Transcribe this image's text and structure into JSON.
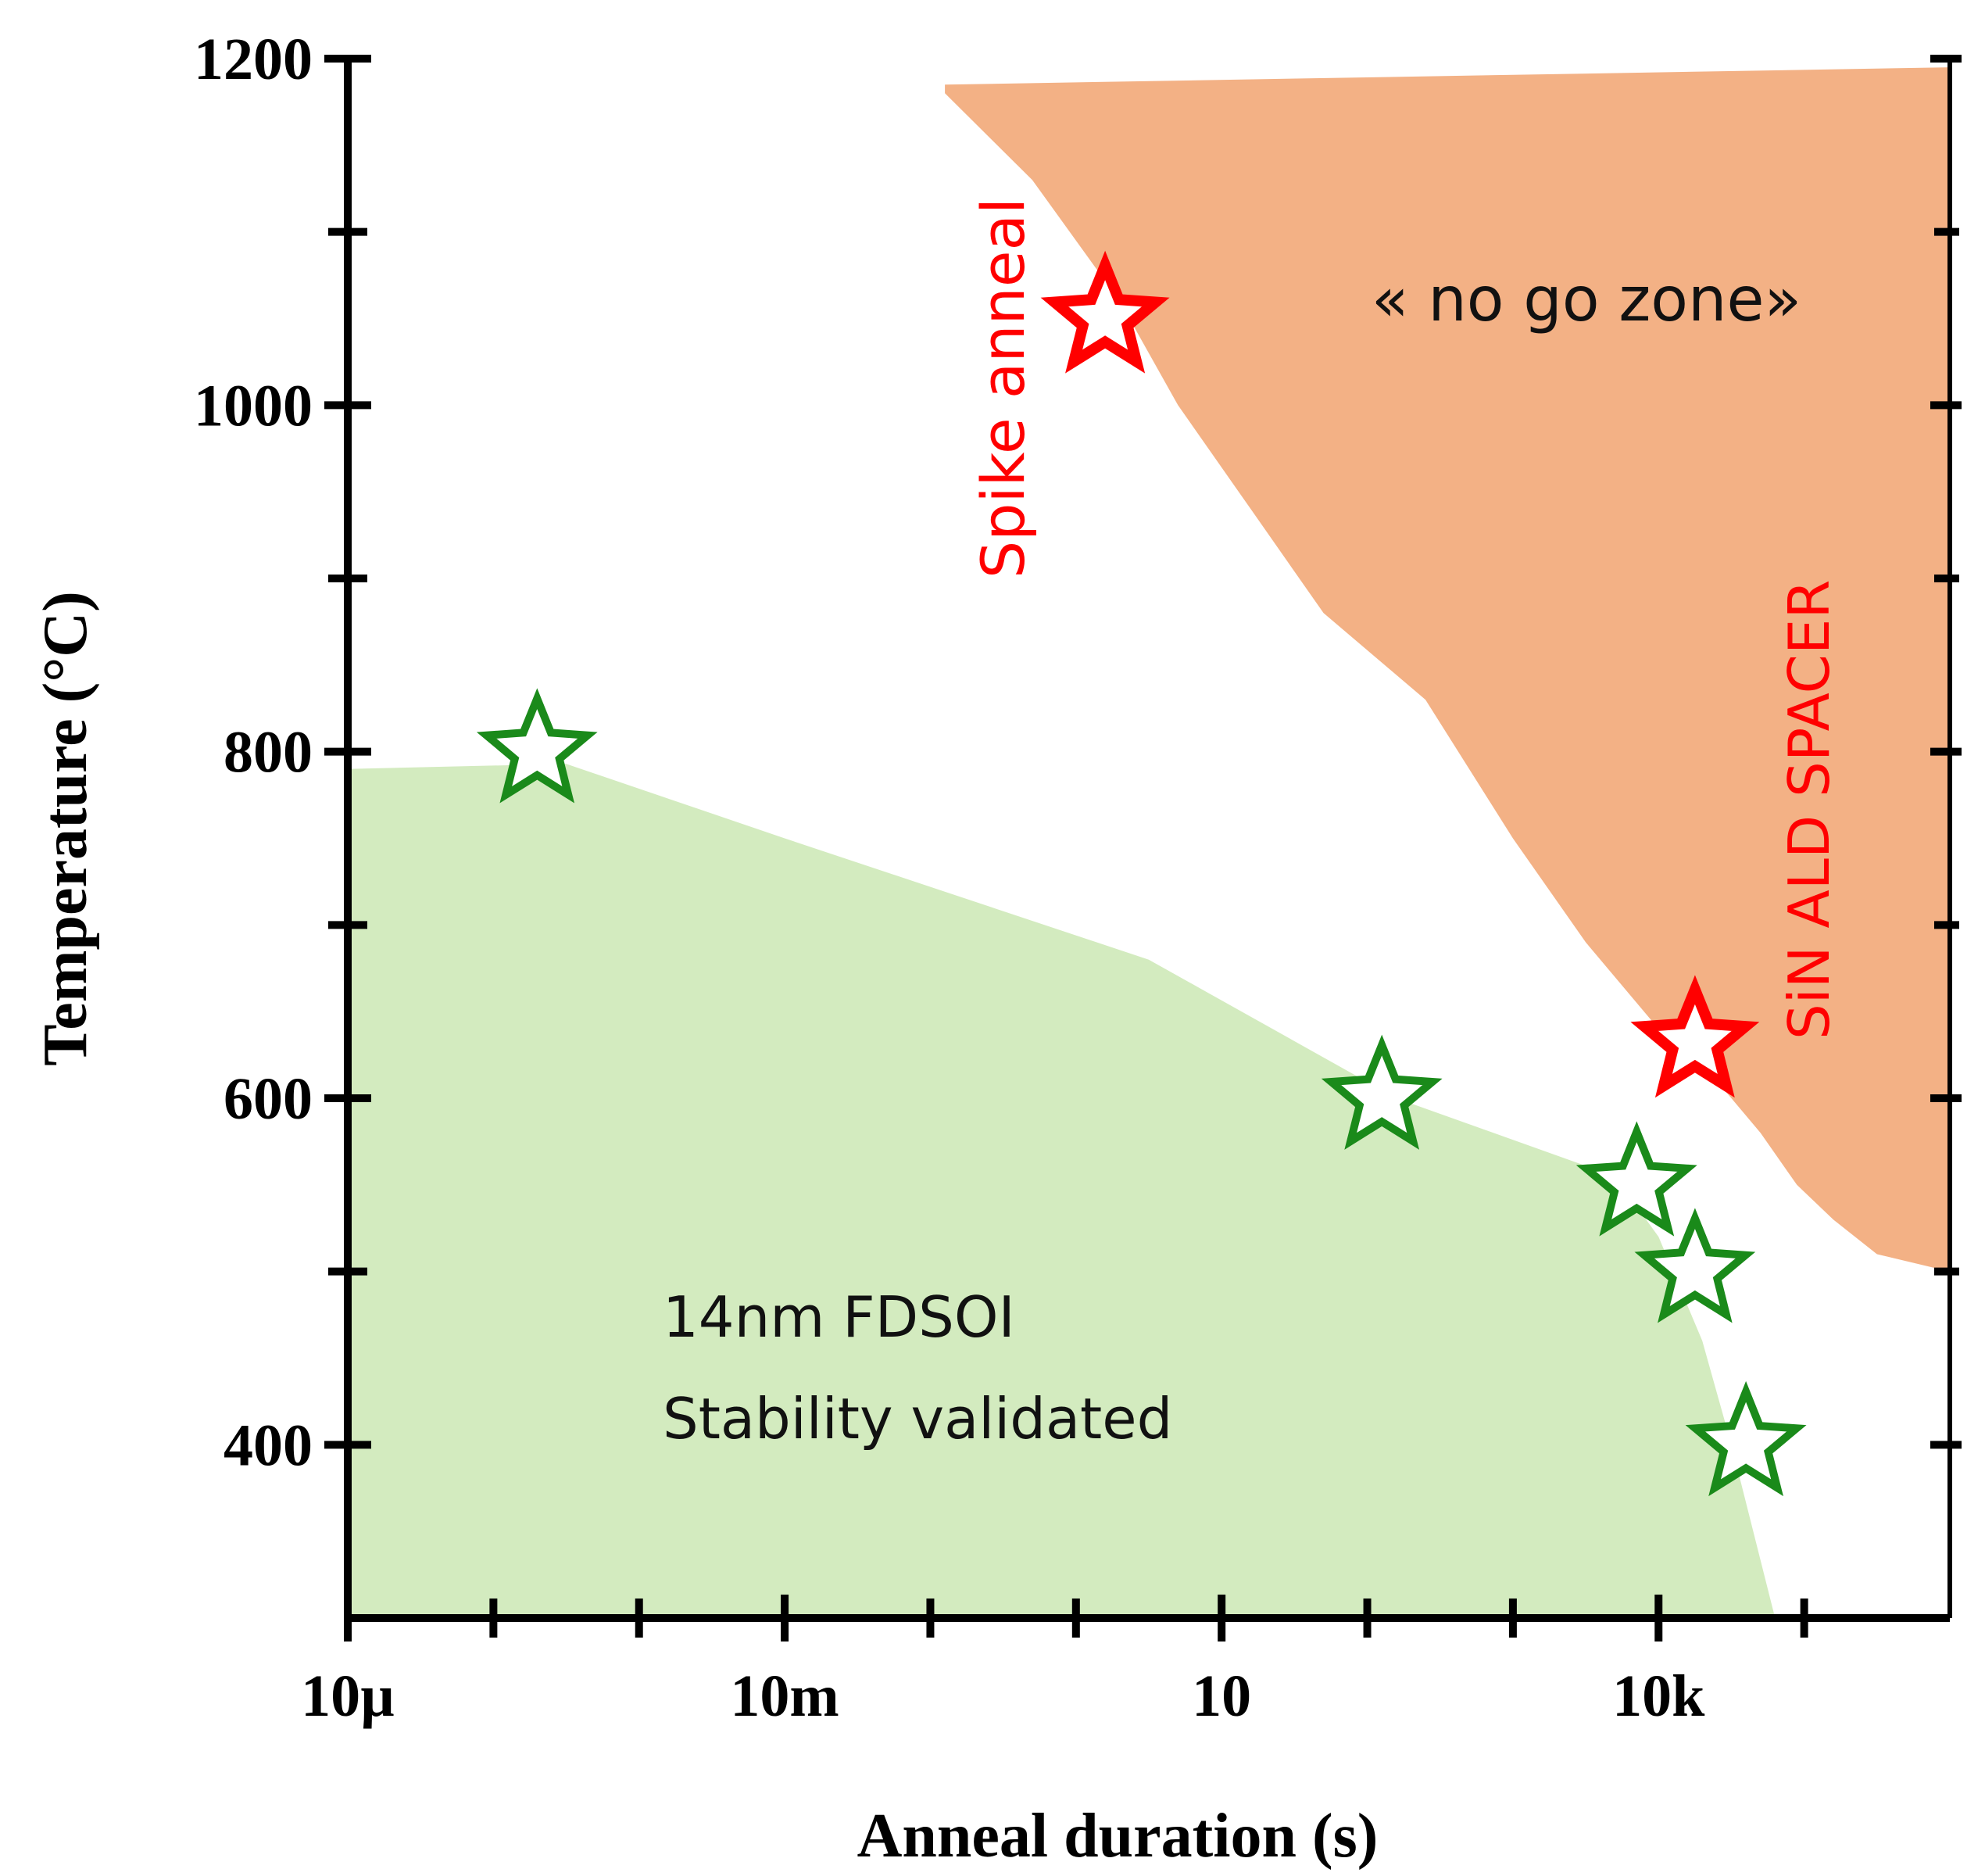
{
  "chart_data": {
    "type": "scatter",
    "title": "",
    "xlabel": "Anneal duration (s)",
    "ylabel": "Temperature (°C)",
    "x_scale": "log10",
    "xlim_log10": [
      -5,
      6
    ],
    "ylim": [
      300,
      1200
    ],
    "x_tick_labels": [
      {
        "log10": -5,
        "label": "10µ"
      },
      {
        "log10": -2,
        "label": "10m"
      },
      {
        "log10": 1,
        "label": "10"
      },
      {
        "log10": 4,
        "label": "10k"
      }
    ],
    "y_tick_labels": [
      {
        "value": 400,
        "label": "400"
      },
      {
        "value": 600,
        "label": "600"
      },
      {
        "value": 800,
        "label": "800"
      },
      {
        "value": 1000,
        "label": "1000"
      },
      {
        "value": 1200,
        "label": "1200"
      }
    ],
    "x_minor_ticks_log10": [
      -4,
      -3,
      -1,
      0,
      2,
      3,
      5
    ],
    "y_minor_ticks": [
      500,
      700,
      900,
      1100
    ],
    "regions": [
      {
        "name": "no-go-zone",
        "color": "#f3b185",
        "boundary": [
          [
            -0.9,
            1180
          ],
          [
            -0.3,
            1130
          ],
          [
            0.3,
            1060
          ],
          [
            0.7,
            1000
          ],
          [
            1.2,
            940
          ],
          [
            1.7,
            880
          ],
          [
            2.4,
            830
          ],
          [
            3.0,
            750
          ],
          [
            3.5,
            690
          ],
          [
            4.0,
            640
          ],
          [
            4.4,
            610
          ],
          [
            4.7,
            580
          ],
          [
            4.95,
            550
          ],
          [
            5.2,
            530
          ],
          [
            5.5,
            510
          ],
          [
            6.0,
            500
          ],
          [
            6.0,
            1195
          ],
          [
            -0.9,
            1185
          ]
        ]
      },
      {
        "name": "stability-zone",
        "color": "#d3ebbf",
        "boundary": [
          [
            -5,
            790
          ],
          [
            -3.5,
            793
          ],
          [
            -2.0,
            750
          ],
          [
            0.5,
            680
          ],
          [
            2.2,
            600
          ],
          [
            3.2,
            570
          ],
          [
            3.7,
            555
          ],
          [
            4.0,
            520
          ],
          [
            4.3,
            460
          ],
          [
            4.5,
            400
          ],
          [
            4.8,
            300
          ],
          [
            -5,
            300
          ]
        ]
      }
    ],
    "series": [
      {
        "name": "validated",
        "color": "#1a8a1a",
        "points": [
          {
            "log10x": -3.7,
            "y": 800
          },
          {
            "log10x": 2.1,
            "y": 600
          },
          {
            "log10x": 3.85,
            "y": 550
          },
          {
            "log10x": 4.25,
            "y": 500
          },
          {
            "log10x": 4.6,
            "y": 400
          }
        ]
      },
      {
        "name": "limits",
        "color": "#ff0000",
        "points": [
          {
            "log10x": 0.2,
            "y": 1050
          },
          {
            "log10x": 4.25,
            "y": 632
          }
        ]
      }
    ],
    "annotations": {
      "no_go": "« no go zone»",
      "spike": "Spike anneal",
      "sin": "SiN ALD SPACER",
      "fdsoi_line1": "14nm FDSOI",
      "fdsoi_line2": "Stability validated"
    }
  }
}
